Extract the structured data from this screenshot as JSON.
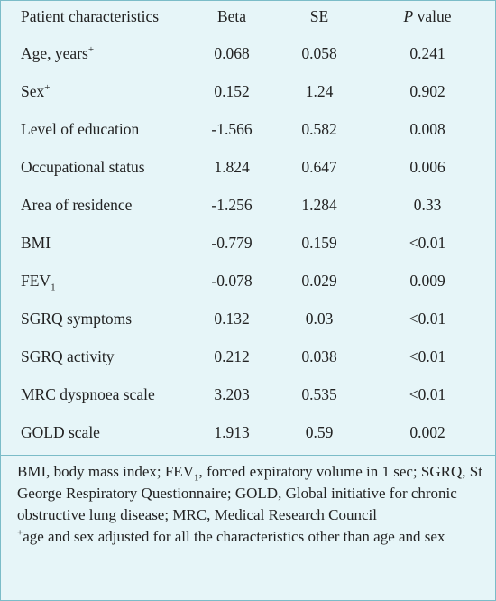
{
  "table": {
    "header": [
      [
        {
          "text": "Patient characteristics"
        }
      ],
      [
        {
          "text": "Beta"
        }
      ],
      [
        {
          "text": "SE"
        }
      ],
      [
        {
          "italic": "P"
        },
        {
          "text": " value"
        }
      ]
    ],
    "rows": [
      [
        [
          {
            "text": "Age, years"
          },
          {
            "sup": "+"
          }
        ],
        "0.068",
        "0.058",
        "0.241"
      ],
      [
        [
          {
            "text": "Sex"
          },
          {
            "sup": "+"
          }
        ],
        "0.152",
        "1.24",
        "0.902"
      ],
      [
        [
          {
            "text": "Level of education"
          }
        ],
        "-1.566",
        "0.582",
        "0.008"
      ],
      [
        [
          {
            "text": "Occupational status"
          }
        ],
        "1.824",
        "0.647",
        "0.006"
      ],
      [
        [
          {
            "text": "Area of residence"
          }
        ],
        "-1.256",
        "1.284",
        "0.33"
      ],
      [
        [
          {
            "text": "BMI"
          }
        ],
        "-0.779",
        "0.159",
        "<0.01"
      ],
      [
        [
          {
            "text": "FEV"
          },
          {
            "sub": "1"
          }
        ],
        "-0.078",
        "0.029",
        "0.009"
      ],
      [
        [
          {
            "text": "SGRQ symptoms"
          }
        ],
        "0.132",
        "0.03",
        "<0.01"
      ],
      [
        [
          {
            "text": "SGRQ activity"
          }
        ],
        "0.212",
        "0.038",
        "<0.01"
      ],
      [
        [
          {
            "text": "MRC dyspnoea scale"
          }
        ],
        "3.203",
        "0.535",
        "<0.01"
      ],
      [
        [
          {
            "text": "GOLD scale"
          }
        ],
        "1.913",
        "0.59",
        "0.002"
      ]
    ],
    "footnotes": [
      [
        {
          "text": "BMI, body mass index; FEV"
        },
        {
          "sub": "1"
        },
        {
          "text": ", forced expiratory volume in 1 sec; SGRQ, St George Respiratory Questionnaire; GOLD, Global initiative for chronic obstructive lung disease; MRC, Medical Research Council"
        }
      ],
      [
        {
          "sup": "+"
        },
        {
          "text": "age and sex adjusted for all the characteristics other than age and sex"
        }
      ]
    ]
  }
}
